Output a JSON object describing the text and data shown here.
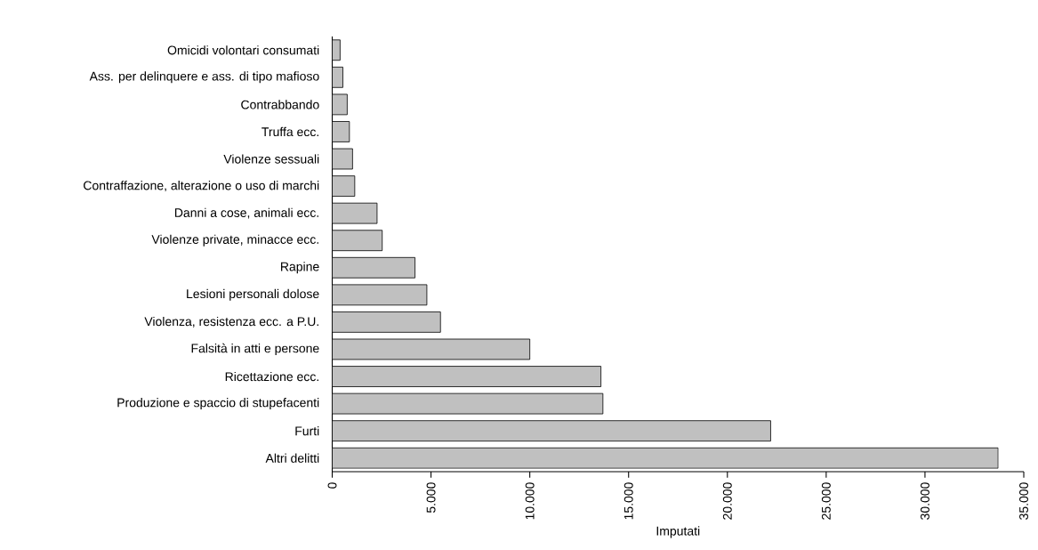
{
  "chart_data": {
    "type": "bar",
    "orientation": "horizontal",
    "xlabel": "Imputati",
    "categories": [
      "Omicidi volontari consumati",
      "Ass. per delinquere e ass. di tipo mafioso",
      "Contrabbando",
      "Truffa ecc.",
      "Violenze sessuali",
      "Contraffazione, alterazione o uso di marchi",
      "Danni a cose, animali ecc.",
      "Violenze private, minacce ecc.",
      "Rapine",
      "Lesioni personali dolose",
      "Violenza, resistenza ecc. a P.U.",
      "Falsità in atti  e persone",
      "Ricettazione ecc.",
      "Produzione e spaccio di stupefacenti",
      "Furti",
      "Altri delitti"
    ],
    "values": [
      400,
      540,
      760,
      870,
      1030,
      1140,
      2270,
      2530,
      4190,
      4790,
      5480,
      10000,
      13600,
      13700,
      22190,
      33700
    ],
    "color": "#c0c0c0",
    "xlim": [
      0,
      35000
    ],
    "xticks": [
      0,
      {
        "value": 5000,
        "label": "5.000"
      },
      {
        "value": 10000,
        "label": "10.000"
      },
      {
        "value": 15000,
        "label": "15.000"
      },
      {
        "value": 20000,
        "label": "20.000"
      },
      {
        "value": 25000,
        "label": "25.000"
      },
      {
        "value": 30000,
        "label": "30.000"
      },
      {
        "value": 35000,
        "label": "35.000"
      }
    ],
    "grid": false
  }
}
